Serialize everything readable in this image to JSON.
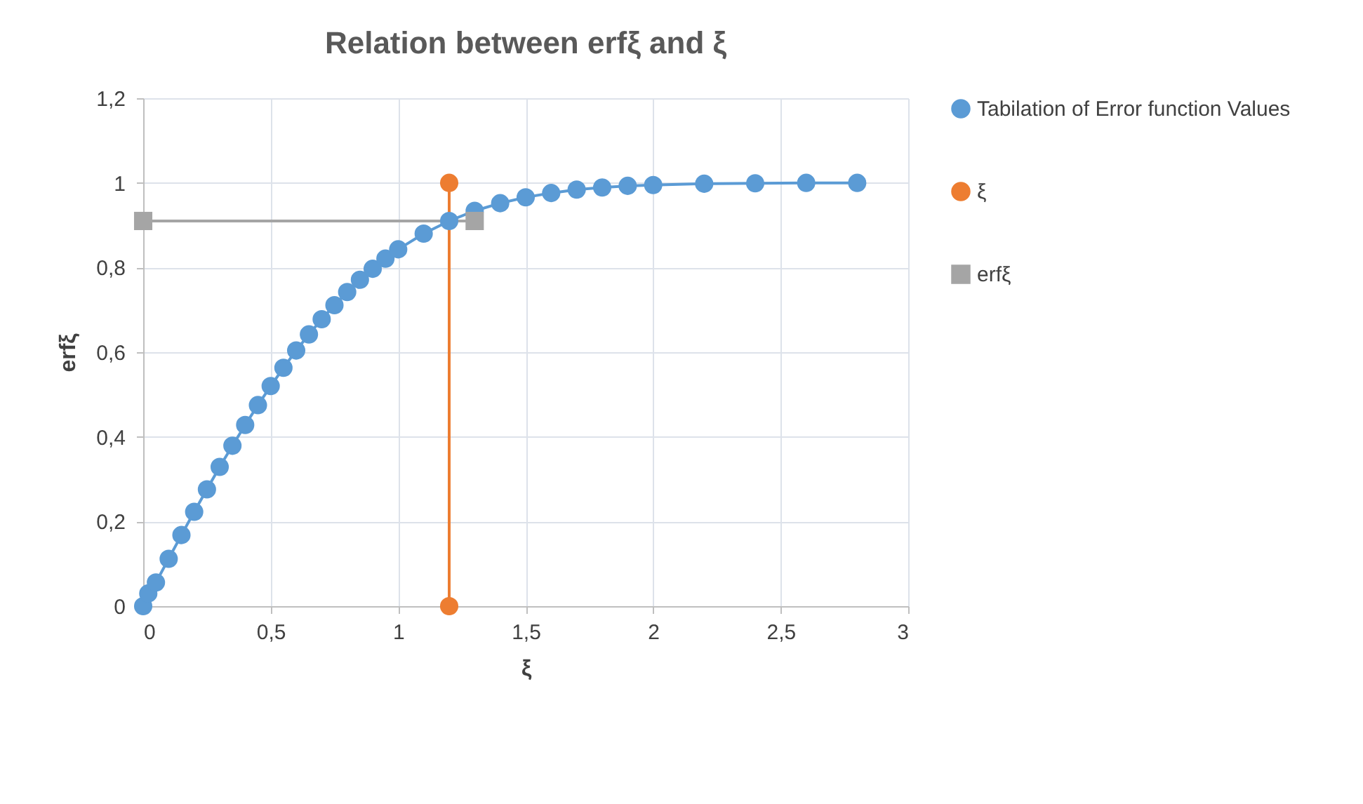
{
  "chart_data": {
    "type": "line",
    "title": "Relation between erfξ and ξ",
    "xlabel": "ξ",
    "ylabel": "erfξ",
    "xlim": [
      0,
      3
    ],
    "xticks": [
      0,
      {
        "value": 0.5,
        "label": "0,5"
      },
      1,
      {
        "value": 1.5,
        "label": "1,5"
      },
      2,
      {
        "value": 2.5,
        "label": "2,5"
      },
      3
    ],
    "ylim": [
      0,
      1.2
    ],
    "yticks": [
      0,
      {
        "value": 0.2,
        "label": "0,2"
      },
      {
        "value": 0.4,
        "label": "0,4"
      },
      {
        "value": 0.6,
        "label": "0,6"
      },
      {
        "value": 0.8,
        "label": "0,8"
      },
      1,
      {
        "value": 1.2,
        "label": "1,2"
      }
    ],
    "grid": true,
    "legend": "right",
    "line_style": "solid",
    "series": [
      {
        "name": "Tabilation of Error function Values",
        "color": "#5b9bd5",
        "marker": "circle",
        "x": [
          0,
          0.02,
          0.05,
          0.1,
          0.15,
          0.2,
          0.25,
          0.3,
          0.35,
          0.4,
          0.45,
          0.5,
          0.55,
          0.6,
          0.65,
          0.7,
          0.75,
          0.8,
          0.85,
          0.9,
          0.95,
          1,
          1.1,
          1.2,
          1.3,
          1.4,
          1.5,
          1.6,
          1.7,
          1.8,
          1.9,
          2,
          2.2,
          2.4,
          2.6,
          2.8
        ],
        "values": [
          0,
          0.03,
          0.056,
          0.112,
          0.168,
          0.223,
          0.276,
          0.329,
          0.379,
          0.428,
          0.475,
          0.52,
          0.563,
          0.604,
          0.642,
          0.678,
          0.711,
          0.742,
          0.771,
          0.797,
          0.821,
          0.843,
          0.88,
          0.91,
          0.934,
          0.952,
          0.966,
          0.976,
          0.984,
          0.989,
          0.993,
          0.995,
          0.998,
          0.999,
          1,
          1
        ]
      },
      {
        "name": "ξ",
        "color": "#ed7d31",
        "marker": "circle",
        "x": [
          1.2,
          1.2
        ],
        "values": [
          1,
          0
        ]
      },
      {
        "name": "erfξ",
        "color": "#a5a5a5",
        "marker": "square",
        "x": [
          0,
          1.3
        ],
        "values": [
          0.91,
          0.91
        ]
      }
    ]
  }
}
